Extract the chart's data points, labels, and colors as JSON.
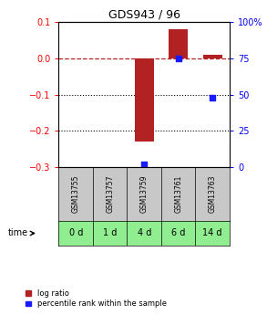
{
  "title": "GDS943 / 96",
  "samples": [
    "GSM13755",
    "GSM13757",
    "GSM13759",
    "GSM13761",
    "GSM13763"
  ],
  "time_labels": [
    "0 d",
    "1 d",
    "4 d",
    "6 d",
    "14 d"
  ],
  "log_ratio": [
    0.0,
    0.0,
    -0.23,
    0.08,
    0.01
  ],
  "percentile": [
    null,
    null,
    2.0,
    75.0,
    48.0
  ],
  "ylim_left": [
    -0.3,
    0.1
  ],
  "ylim_right": [
    0,
    100
  ],
  "yticks_left": [
    0.1,
    0,
    -0.1,
    -0.2,
    -0.3
  ],
  "yticks_right": [
    100,
    75,
    50,
    25,
    0
  ],
  "dotted_lines": [
    -0.1,
    -0.2
  ],
  "bar_color": "#b22222",
  "scatter_color": "#1a1aff",
  "bar_width": 0.55,
  "time_row_color": "#90ee90",
  "sample_row_color": "#c8c8c8",
  "legend_bar_label": "log ratio",
  "legend_scatter_label": "percentile rank within the sample",
  "fig_width": 2.93,
  "fig_height": 3.45,
  "title_fontsize": 9,
  "tick_fontsize": 7,
  "sample_fontsize": 5.5,
  "time_fontsize": 7,
  "legend_fontsize": 6
}
